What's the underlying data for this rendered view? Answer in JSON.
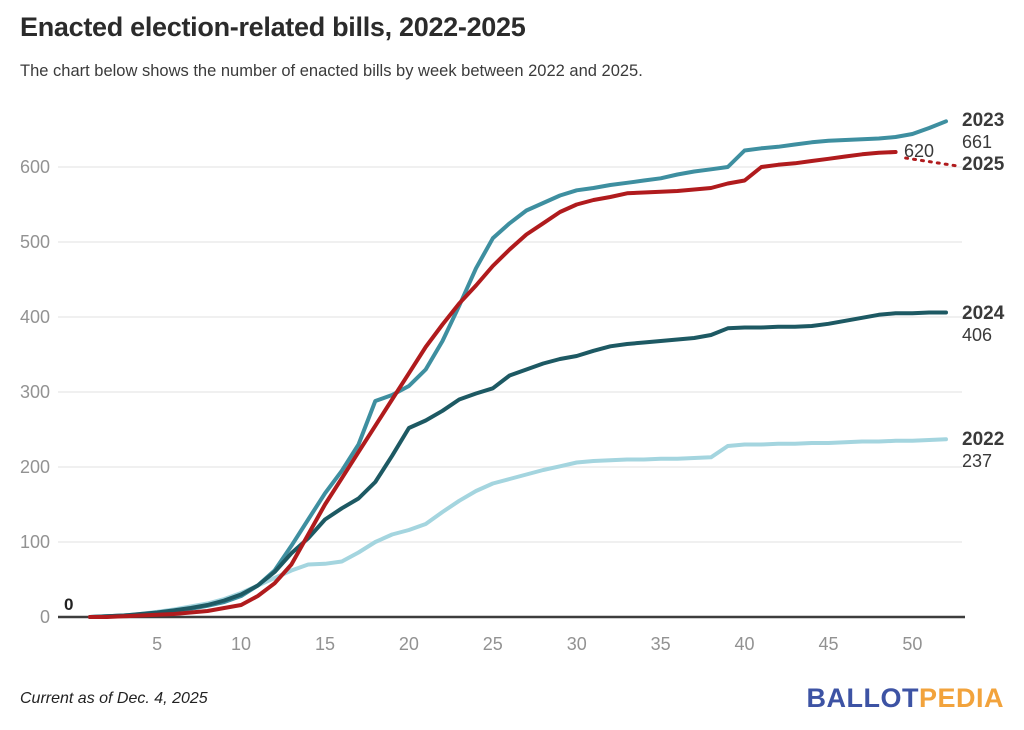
{
  "header": {
    "title": "Enacted election-related bills, 2022-2025",
    "subtitle": "The chart below shows the number of enacted bills by week between 2022 and 2025."
  },
  "footer": {
    "note": "Current as of Dec. 4, 2025",
    "logo": {
      "part1": "BALLOT",
      "part2": "PEDIA",
      "color1": "#3d53a4",
      "color2": "#f2a33c"
    }
  },
  "chart_data": {
    "type": "line",
    "title": "Enacted election-related bills, 2022-2025",
    "xlabel": "",
    "ylabel": "",
    "x_unit": "week of year",
    "xlim": [
      1,
      52
    ],
    "ylim": [
      0,
      680
    ],
    "grid": true,
    "legend_position": "right-end-labels",
    "x_ticks": [
      5,
      10,
      15,
      20,
      25,
      30,
      35,
      40,
      45,
      50
    ],
    "y_ticks": [
      0,
      100,
      200,
      300,
      400,
      500,
      600
    ],
    "axis_color": "#3d3d3d",
    "gridline_color": "#ebebeb",
    "tick_label_color": "#929292",
    "series": [
      {
        "name": "2022",
        "color": "#a4d5df",
        "end_value": 237,
        "values": [
          0,
          1,
          2,
          4,
          7,
          10,
          14,
          18,
          24,
          32,
          42,
          52,
          62,
          70,
          71,
          74,
          86,
          100,
          110,
          116,
          124,
          140,
          155,
          168,
          178,
          184,
          190,
          196,
          201,
          206,
          208,
          209,
          210,
          210,
          211,
          211,
          212,
          213,
          228,
          230,
          230,
          231,
          231,
          232,
          232,
          233,
          234,
          234,
          235,
          235,
          236,
          237
        ]
      },
      {
        "name": "2023",
        "color": "#3e8fa0",
        "end_value": 661,
        "values": [
          0,
          1,
          2,
          3,
          5,
          8,
          11,
          15,
          20,
          28,
          42,
          62,
          95,
          130,
          165,
          195,
          230,
          288,
          296,
          308,
          330,
          368,
          415,
          465,
          505,
          525,
          542,
          552,
          562,
          569,
          572,
          576,
          579,
          582,
          585,
          590,
          594,
          597,
          600,
          622,
          625,
          627,
          630,
          633,
          635,
          636,
          637,
          638,
          640,
          644,
          652,
          661
        ]
      },
      {
        "name": "2024",
        "color": "#1d5963",
        "end_value": 406,
        "values": [
          0,
          1,
          2,
          4,
          6,
          9,
          12,
          16,
          22,
          30,
          42,
          60,
          85,
          105,
          130,
          145,
          158,
          180,
          215,
          252,
          262,
          275,
          290,
          298,
          305,
          322,
          330,
          338,
          344,
          348,
          355,
          361,
          364,
          366,
          368,
          370,
          372,
          376,
          385,
          386,
          386,
          387,
          387,
          388,
          391,
          395,
          399,
          403,
          405,
          405,
          406,
          406
        ]
      },
      {
        "name": "2025",
        "color": "#b01b1d",
        "end_value": 620,
        "start_annotation": "0",
        "dotted_tail": true,
        "values": [
          0,
          0,
          1,
          2,
          3,
          4,
          6,
          8,
          12,
          16,
          28,
          45,
          70,
          110,
          150,
          185,
          220,
          255,
          290,
          325,
          360,
          390,
          418,
          442,
          468,
          490,
          510,
          525,
          540,
          550,
          556,
          560,
          565,
          566,
          567,
          568,
          570,
          572,
          578,
          582,
          600,
          603,
          605,
          608,
          611,
          614,
          617,
          619,
          620
        ]
      }
    ]
  }
}
